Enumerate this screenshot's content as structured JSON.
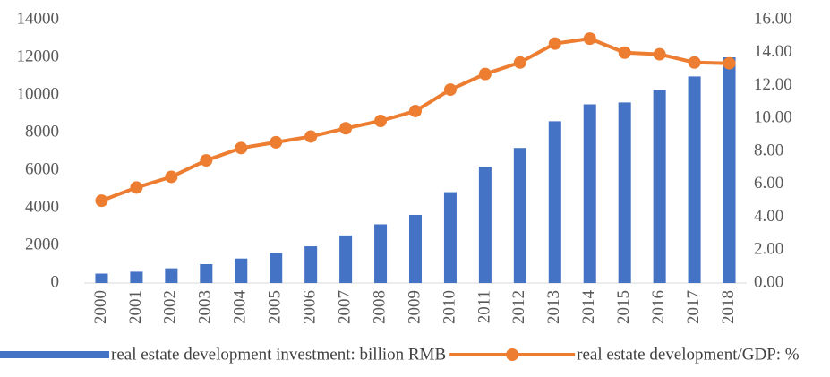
{
  "chart_data": {
    "type": "bar-line",
    "categories": [
      "2000",
      "2001",
      "2002",
      "2003",
      "2004",
      "2005",
      "2006",
      "2007",
      "2008",
      "2009",
      "2010",
      "2011",
      "2012",
      "2013",
      "2014",
      "2015",
      "2016",
      "2017",
      "2018"
    ],
    "series": [
      {
        "name": "real estate development investment: billion RMB",
        "type": "bar",
        "color": "#4472c4",
        "values": [
          500,
          600,
          780,
          1000,
          1300,
          1600,
          1950,
          2530,
          3120,
          3620,
          4830,
          6180,
          7180,
          8600,
          9500,
          9600,
          10260,
          10980,
          12000
        ]
      },
      {
        "name": "real estate development/GDP: %",
        "type": "line",
        "axis": "y2",
        "color": "#ed7d31",
        "values": [
          5.0,
          5.8,
          6.45,
          7.45,
          8.2,
          8.55,
          8.9,
          9.4,
          9.85,
          10.45,
          11.75,
          12.7,
          13.4,
          14.55,
          14.85,
          14.0,
          13.9,
          13.4,
          13.35
        ]
      }
    ],
    "ylim": [
      0,
      14000
    ],
    "yticks": [
      0,
      2000,
      4000,
      6000,
      8000,
      10000,
      12000,
      14000
    ],
    "y2lim": [
      0,
      16
    ],
    "y2ticks": [
      {
        "value": 0,
        "label": "0.00"
      },
      {
        "value": 2,
        "label": "2.00"
      },
      {
        "value": 4,
        "label": "4.00"
      },
      {
        "value": 6,
        "label": "6.00"
      },
      {
        "value": 8,
        "label": "8.00"
      },
      {
        "value": 10,
        "label": "10.00"
      },
      {
        "value": 12,
        "label": "12.00"
      },
      {
        "value": 14,
        "label": "14.00"
      },
      {
        "value": 16,
        "label": "16.00"
      }
    ],
    "grid": false
  }
}
